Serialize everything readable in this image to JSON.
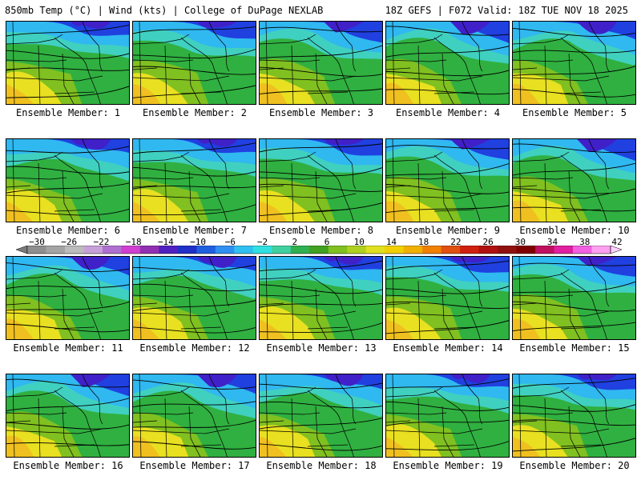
{
  "header": {
    "left": "850mb Temp (°C) | Wind (kts) | College of DuPage NEXLAB",
    "right": "18Z GEFS | F072 Valid: 18Z TUE NOV 18 2025"
  },
  "members": [
    {
      "label": "Ensemble Member: 1"
    },
    {
      "label": "Ensemble Member: 2"
    },
    {
      "label": "Ensemble Member: 3"
    },
    {
      "label": "Ensemble Member: 4"
    },
    {
      "label": "Ensemble Member: 5"
    },
    {
      "label": "Ensemble Member: 6"
    },
    {
      "label": "Ensemble Member: 7"
    },
    {
      "label": "Ensemble Member: 8"
    },
    {
      "label": "Ensemble Member: 9"
    },
    {
      "label": "Ensemble Member: 10"
    },
    {
      "label": "Ensemble Member: 11"
    },
    {
      "label": "Ensemble Member: 12"
    },
    {
      "label": "Ensemble Member: 13"
    },
    {
      "label": "Ensemble Member: 14"
    },
    {
      "label": "Ensemble Member: 15"
    },
    {
      "label": "Ensemble Member: 16"
    },
    {
      "label": "Ensemble Member: 17"
    },
    {
      "label": "Ensemble Member: 18"
    },
    {
      "label": "Ensemble Member: 19"
    },
    {
      "label": "Ensemble Member: 20"
    }
  ],
  "colorbar": {
    "ticks": [
      "−30",
      "−26",
      "−22",
      "−18",
      "−14",
      "−10",
      "−6",
      "−2",
      "2",
      "6",
      "10",
      "14",
      "18",
      "22",
      "26",
      "30",
      "34",
      "38",
      "42"
    ],
    "colors": [
      "#7a7a7a",
      "#8f8f8f",
      "#a4a4a4",
      "#bcbcbc",
      "#c8a0d8",
      "#b070d0",
      "#d040d0",
      "#9030b0",
      "#5020c0",
      "#2030c8",
      "#2060e0",
      "#3090f0",
      "#30c0f0",
      "#30e0e0",
      "#40d0a0",
      "#30b050",
      "#40a020",
      "#80c020",
      "#b0d020",
      "#e0e020",
      "#f0d000",
      "#f0b000",
      "#f08000",
      "#e05010",
      "#d02010",
      "#b01010",
      "#901010",
      "#800000",
      "#c01060",
      "#e020a0",
      "#f060e0",
      "#ff9ff0",
      "#ffd0ff"
    ]
  },
  "layer_colors": {
    "deep_cold": "#4020c8",
    "cold": "#2040e0",
    "cool": "#30b8f0",
    "mild": "#40d0c0",
    "green": "#30b040",
    "light_green": "#80c020",
    "yellow": "#e8e020",
    "warm": "#f0c020"
  }
}
